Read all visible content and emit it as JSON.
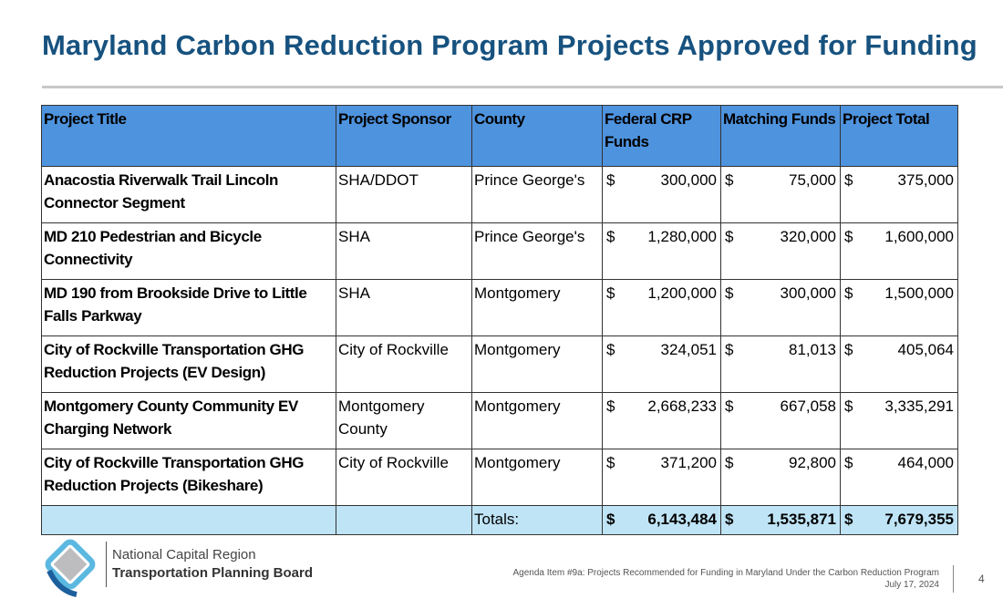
{
  "title": "Maryland Carbon Reduction Program Projects Approved for Funding",
  "table": {
    "headers": [
      "Project Title",
      "Project Sponsor",
      "County",
      "Federal CRP Funds",
      "Matching Funds",
      "Project Total"
    ],
    "rows": [
      {
        "title": "Anacostia Riverwalk Trail Lincoln Connector Segment",
        "sponsor": "SHA/DDOT",
        "county": "Prince George's",
        "federal": "300,000",
        "matching": "75,000",
        "total": "375,000"
      },
      {
        "title": "MD 210 Pedestrian and Bicycle Connectivity",
        "sponsor": "SHA",
        "county": "Prince George's",
        "federal": "1,280,000",
        "matching": "320,000",
        "total": "1,600,000"
      },
      {
        "title": "MD 190 from Brookside Drive to Little Falls Parkway",
        "sponsor": "SHA",
        "county": "Montgomery",
        "federal": "1,200,000",
        "matching": "300,000",
        "total": "1,500,000"
      },
      {
        "title": "City of Rockville Transportation GHG Reduction Projects (EV Design)",
        "sponsor": "City of Rockville",
        "county": "Montgomery",
        "federal": "324,051",
        "matching": "81,013",
        "total": "405,064"
      },
      {
        "title": "Montgomery County Community EV Charging Network",
        "sponsor": "Montgomery County",
        "county": "Montgomery",
        "federal": "2,668,233",
        "matching": "667,058",
        "total": "3,335,291"
      },
      {
        "title": "City of Rockville Transportation GHG Reduction Projects (Bikeshare)",
        "sponsor": "City of Rockville",
        "county": "Montgomery",
        "federal": "371,200",
        "matching": "92,800",
        "total": "464,000"
      }
    ],
    "currency": "$",
    "totals": {
      "label": "Totals:",
      "federal": "6,143,484",
      "matching": "1,535,871",
      "total": "7,679,355"
    }
  },
  "footer": {
    "org_line1": "National Capital Region",
    "org_line2": "Transportation Planning Board",
    "agenda": "Agenda Item #9a: Projects Recommended  for Funding  in Maryland Under the Carbon Reduction Program",
    "date": "July 17, 2024",
    "page": "4"
  },
  "colors": {
    "title": "#17527f",
    "header": "#4e93de",
    "totals": "#bfe4f6"
  }
}
